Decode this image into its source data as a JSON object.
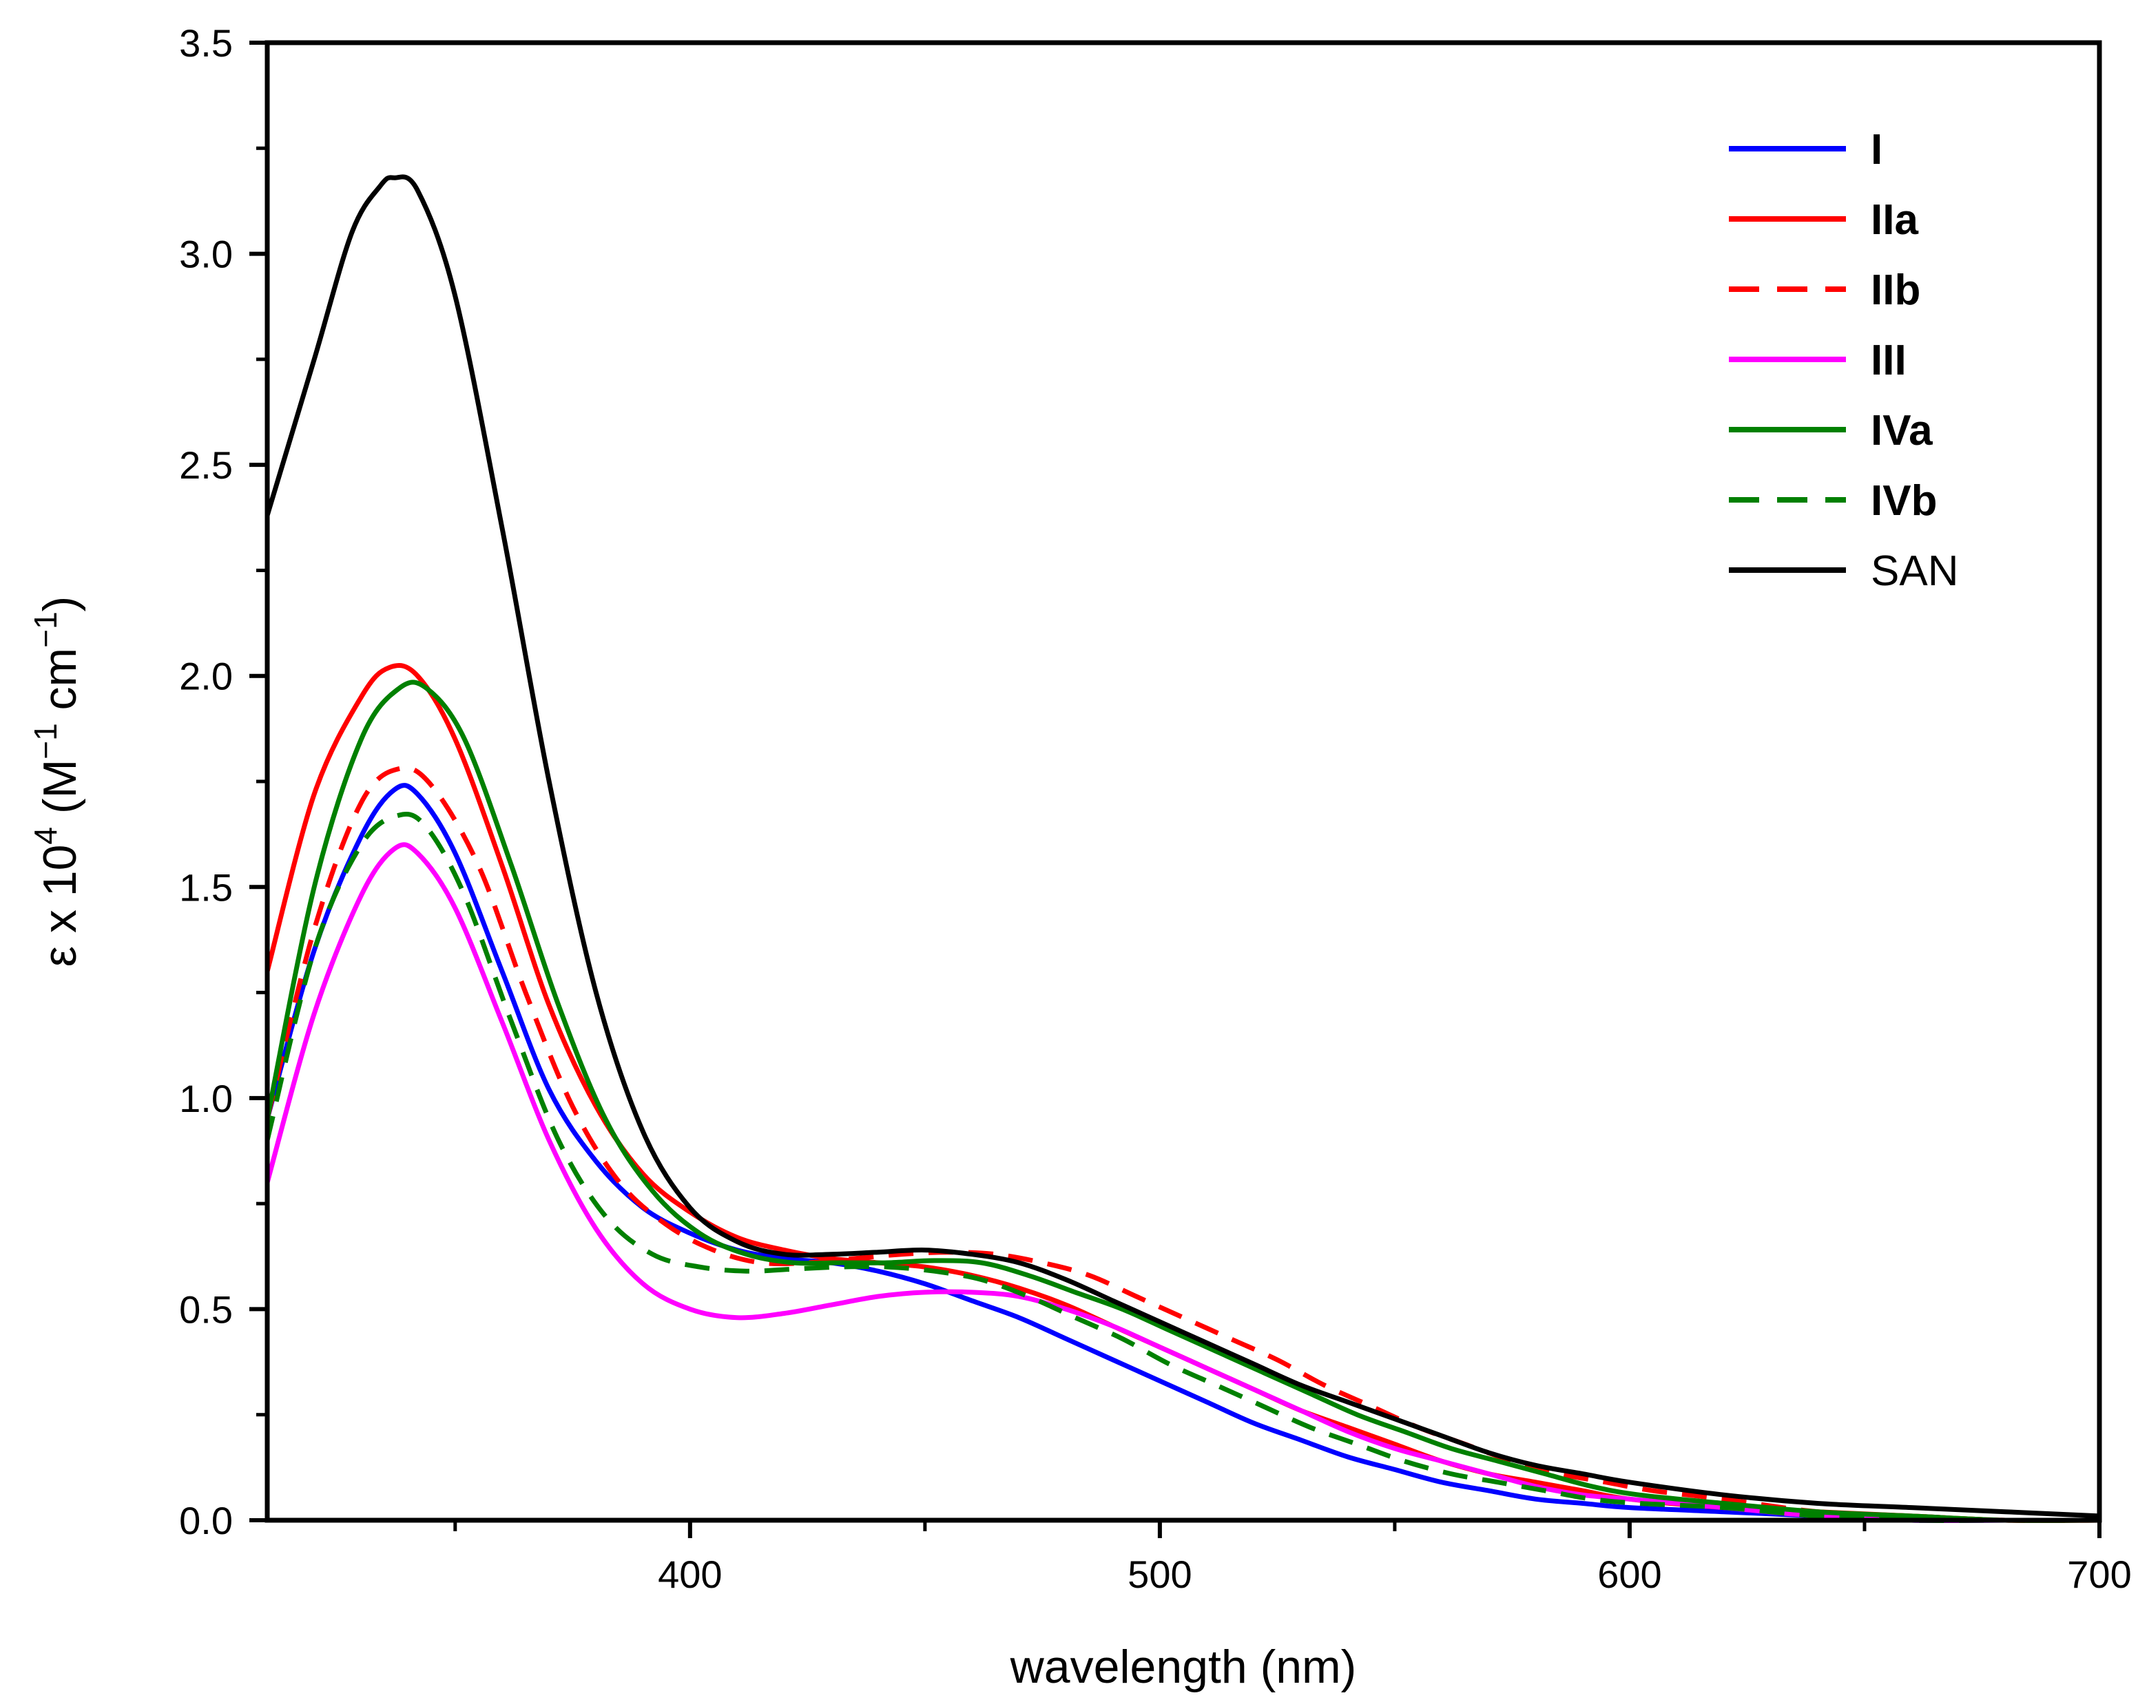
{
  "chart_data": {
    "type": "line",
    "title": "",
    "xlabel": "wavelength (nm)",
    "ylabel": {
      "symbol": "ε x 10",
      "exp": "4",
      "open": " (M",
      "neg1a": "−1",
      "mid": " cm",
      "neg1b": "−1",
      "close": ")"
    },
    "xlim": [
      310,
      700
    ],
    "ylim": [
      0.0,
      3.5
    ],
    "x_ticks": [
      400,
      500,
      600,
      700
    ],
    "x_tick_labels": [
      "400",
      "500",
      "600",
      "700"
    ],
    "x_minor_ticks": [
      350,
      450,
      550,
      650
    ],
    "y_ticks": [
      0.0,
      0.5,
      1.0,
      1.5,
      2.0,
      2.5,
      3.0,
      3.5
    ],
    "y_tick_labels": [
      "0.0",
      "0.5",
      "1.0",
      "1.5",
      "2.0",
      "2.5",
      "3.0",
      "3.5"
    ],
    "y_minor_ticks": [
      0.25,
      0.75,
      1.25,
      1.75,
      2.25,
      2.75,
      3.25
    ],
    "legend_position": "top-right",
    "series": [
      {
        "name": "I",
        "bold": true,
        "color": "#0000ff",
        "dash": false,
        "points": [
          [
            310,
            0.95
          ],
          [
            320,
            1.35
          ],
          [
            330,
            1.62
          ],
          [
            337,
            1.73
          ],
          [
            342,
            1.72
          ],
          [
            350,
            1.58
          ],
          [
            360,
            1.3
          ],
          [
            370,
            1.02
          ],
          [
            380,
            0.85
          ],
          [
            390,
            0.74
          ],
          [
            400,
            0.68
          ],
          [
            410,
            0.64
          ],
          [
            420,
            0.62
          ],
          [
            430,
            0.61
          ],
          [
            440,
            0.59
          ],
          [
            450,
            0.56
          ],
          [
            460,
            0.52
          ],
          [
            470,
            0.48
          ],
          [
            480,
            0.43
          ],
          [
            490,
            0.38
          ],
          [
            500,
            0.33
          ],
          [
            510,
            0.28
          ],
          [
            520,
            0.23
          ],
          [
            530,
            0.19
          ],
          [
            540,
            0.15
          ],
          [
            550,
            0.12
          ],
          [
            560,
            0.09
          ],
          [
            570,
            0.07
          ],
          [
            580,
            0.05
          ],
          [
            590,
            0.04
          ],
          [
            600,
            0.03
          ],
          [
            620,
            0.02
          ],
          [
            640,
            0.01
          ],
          [
            660,
            0.0
          ],
          [
            680,
            0.0
          ],
          [
            700,
            0.0
          ]
        ]
      },
      {
        "name": "IIa",
        "bold": true,
        "color": "#ff0000",
        "dash": false,
        "points": [
          [
            310,
            1.3
          ],
          [
            320,
            1.72
          ],
          [
            330,
            1.95
          ],
          [
            336,
            2.02
          ],
          [
            342,
            2.0
          ],
          [
            350,
            1.85
          ],
          [
            360,
            1.55
          ],
          [
            370,
            1.22
          ],
          [
            380,
            0.98
          ],
          [
            390,
            0.82
          ],
          [
            400,
            0.73
          ],
          [
            410,
            0.67
          ],
          [
            420,
            0.64
          ],
          [
            430,
            0.62
          ],
          [
            440,
            0.61
          ],
          [
            450,
            0.6
          ],
          [
            460,
            0.58
          ],
          [
            470,
            0.55
          ],
          [
            480,
            0.51
          ],
          [
            490,
            0.46
          ],
          [
            500,
            0.41
          ],
          [
            510,
            0.36
          ],
          [
            520,
            0.31
          ],
          [
            530,
            0.26
          ],
          [
            540,
            0.22
          ],
          [
            550,
            0.18
          ],
          [
            560,
            0.14
          ],
          [
            570,
            0.11
          ],
          [
            580,
            0.09
          ],
          [
            590,
            0.07
          ],
          [
            600,
            0.05
          ],
          [
            620,
            0.03
          ],
          [
            640,
            0.02
          ],
          [
            660,
            0.01
          ],
          [
            680,
            0.0
          ],
          [
            700,
            0.0
          ]
        ]
      },
      {
        "name": "IIb",
        "bold": true,
        "color": "#ff0000",
        "dash": true,
        "points": [
          [
            310,
            0.95
          ],
          [
            320,
            1.4
          ],
          [
            330,
            1.7
          ],
          [
            338,
            1.78
          ],
          [
            345,
            1.74
          ],
          [
            355,
            1.55
          ],
          [
            365,
            1.25
          ],
          [
            375,
            0.98
          ],
          [
            385,
            0.8
          ],
          [
            395,
            0.7
          ],
          [
            405,
            0.64
          ],
          [
            415,
            0.61
          ],
          [
            425,
            0.61
          ],
          [
            435,
            0.62
          ],
          [
            445,
            0.63
          ],
          [
            455,
            0.635
          ],
          [
            465,
            0.63
          ],
          [
            475,
            0.61
          ],
          [
            485,
            0.58
          ],
          [
            495,
            0.53
          ],
          [
            505,
            0.48
          ],
          [
            515,
            0.43
          ],
          [
            525,
            0.38
          ],
          [
            535,
            0.32
          ],
          [
            545,
            0.27
          ],
          [
            555,
            0.22
          ],
          [
            565,
            0.18
          ],
          [
            575,
            0.14
          ],
          [
            585,
            0.11
          ],
          [
            595,
            0.09
          ],
          [
            605,
            0.07
          ],
          [
            620,
            0.05
          ],
          [
            640,
            0.02
          ],
          [
            660,
            0.01
          ],
          [
            680,
            0.0
          ],
          [
            700,
            0.0
          ]
        ]
      },
      {
        "name": "III",
        "bold": true,
        "color": "#ff00ff",
        "dash": false,
        "points": [
          [
            310,
            0.8
          ],
          [
            320,
            1.2
          ],
          [
            330,
            1.48
          ],
          [
            337,
            1.59
          ],
          [
            342,
            1.58
          ],
          [
            350,
            1.45
          ],
          [
            360,
            1.18
          ],
          [
            370,
            0.9
          ],
          [
            380,
            0.69
          ],
          [
            390,
            0.56
          ],
          [
            400,
            0.5
          ],
          [
            410,
            0.48
          ],
          [
            420,
            0.49
          ],
          [
            430,
            0.51
          ],
          [
            440,
            0.53
          ],
          [
            450,
            0.54
          ],
          [
            460,
            0.54
          ],
          [
            470,
            0.53
          ],
          [
            480,
            0.5
          ],
          [
            490,
            0.46
          ],
          [
            500,
            0.41
          ],
          [
            510,
            0.36
          ],
          [
            520,
            0.31
          ],
          [
            530,
            0.26
          ],
          [
            540,
            0.21
          ],
          [
            550,
            0.17
          ],
          [
            560,
            0.14
          ],
          [
            570,
            0.11
          ],
          [
            580,
            0.08
          ],
          [
            590,
            0.06
          ],
          [
            600,
            0.05
          ],
          [
            620,
            0.03
          ],
          [
            640,
            0.01
          ],
          [
            660,
            0.0
          ],
          [
            680,
            0.0
          ],
          [
            700,
            0.0
          ]
        ]
      },
      {
        "name": "IVa",
        "bold": true,
        "color": "#008000",
        "dash": false,
        "points": [
          [
            310,
            0.95
          ],
          [
            320,
            1.5
          ],
          [
            330,
            1.85
          ],
          [
            338,
            1.97
          ],
          [
            344,
            1.97
          ],
          [
            352,
            1.85
          ],
          [
            362,
            1.55
          ],
          [
            372,
            1.22
          ],
          [
            382,
            0.95
          ],
          [
            392,
            0.78
          ],
          [
            402,
            0.68
          ],
          [
            412,
            0.63
          ],
          [
            422,
            0.61
          ],
          [
            432,
            0.61
          ],
          [
            442,
            0.61
          ],
          [
            452,
            0.615
          ],
          [
            462,
            0.61
          ],
          [
            472,
            0.58
          ],
          [
            482,
            0.54
          ],
          [
            492,
            0.5
          ],
          [
            502,
            0.45
          ],
          [
            512,
            0.4
          ],
          [
            522,
            0.35
          ],
          [
            532,
            0.3
          ],
          [
            542,
            0.25
          ],
          [
            552,
            0.21
          ],
          [
            562,
            0.17
          ],
          [
            572,
            0.14
          ],
          [
            582,
            0.11
          ],
          [
            592,
            0.08
          ],
          [
            602,
            0.06
          ],
          [
            620,
            0.04
          ],
          [
            640,
            0.02
          ],
          [
            660,
            0.01
          ],
          [
            680,
            0.0
          ],
          [
            700,
            0.0
          ]
        ]
      },
      {
        "name": "IVb",
        "bold": true,
        "color": "#008000",
        "dash": true,
        "points": [
          [
            310,
            0.9
          ],
          [
            320,
            1.35
          ],
          [
            330,
            1.6
          ],
          [
            338,
            1.67
          ],
          [
            344,
            1.64
          ],
          [
            352,
            1.48
          ],
          [
            362,
            1.18
          ],
          [
            372,
            0.9
          ],
          [
            382,
            0.72
          ],
          [
            392,
            0.63
          ],
          [
            402,
            0.6
          ],
          [
            412,
            0.59
          ],
          [
            422,
            0.595
          ],
          [
            432,
            0.6
          ],
          [
            442,
            0.6
          ],
          [
            452,
            0.59
          ],
          [
            462,
            0.57
          ],
          [
            472,
            0.53
          ],
          [
            482,
            0.48
          ],
          [
            492,
            0.43
          ],
          [
            502,
            0.37
          ],
          [
            512,
            0.32
          ],
          [
            522,
            0.27
          ],
          [
            532,
            0.22
          ],
          [
            542,
            0.18
          ],
          [
            552,
            0.14
          ],
          [
            562,
            0.11
          ],
          [
            572,
            0.09
          ],
          [
            582,
            0.07
          ],
          [
            592,
            0.05
          ],
          [
            602,
            0.04
          ],
          [
            620,
            0.03
          ],
          [
            640,
            0.01
          ],
          [
            660,
            0.0
          ],
          [
            680,
            0.0
          ],
          [
            700,
            0.0
          ]
        ]
      },
      {
        "name": "SAN",
        "bold": false,
        "color": "#000000",
        "dash": false,
        "points": [
          [
            310,
            2.38
          ],
          [
            320,
            2.75
          ],
          [
            328,
            3.05
          ],
          [
            334,
            3.16
          ],
          [
            337,
            3.18
          ],
          [
            342,
            3.15
          ],
          [
            350,
            2.9
          ],
          [
            360,
            2.35
          ],
          [
            370,
            1.75
          ],
          [
            380,
            1.25
          ],
          [
            390,
            0.92
          ],
          [
            400,
            0.74
          ],
          [
            410,
            0.66
          ],
          [
            420,
            0.63
          ],
          [
            430,
            0.63
          ],
          [
            440,
            0.635
          ],
          [
            450,
            0.64
          ],
          [
            460,
            0.63
          ],
          [
            470,
            0.61
          ],
          [
            480,
            0.57
          ],
          [
            490,
            0.52
          ],
          [
            500,
            0.47
          ],
          [
            510,
            0.42
          ],
          [
            520,
            0.37
          ],
          [
            530,
            0.32
          ],
          [
            540,
            0.28
          ],
          [
            550,
            0.24
          ],
          [
            560,
            0.2
          ],
          [
            570,
            0.16
          ],
          [
            580,
            0.13
          ],
          [
            590,
            0.11
          ],
          [
            600,
            0.09
          ],
          [
            620,
            0.06
          ],
          [
            640,
            0.04
          ],
          [
            660,
            0.03
          ],
          [
            680,
            0.02
          ],
          [
            700,
            0.01
          ]
        ]
      }
    ]
  }
}
